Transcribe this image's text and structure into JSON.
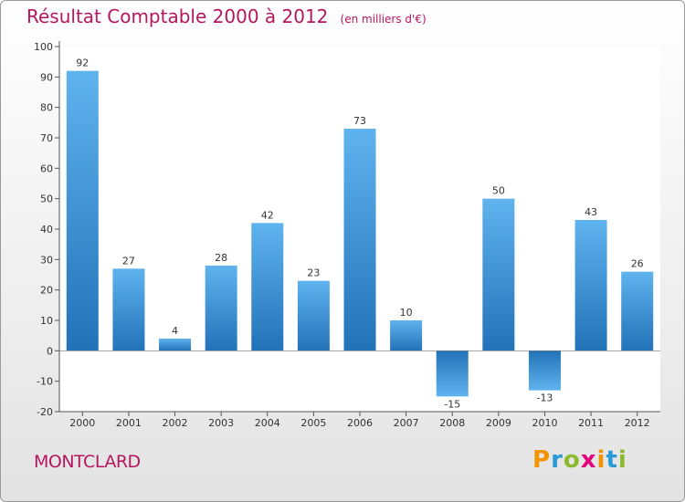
{
  "chart_data": {
    "type": "bar",
    "title": "Résultat Comptable 2000 à 2012",
    "subtitle": "(en milliers d'€)",
    "xlabel": "",
    "ylabel": "",
    "categories": [
      "2000",
      "2001",
      "2002",
      "2003",
      "2004",
      "2005",
      "2006",
      "2007",
      "2008",
      "2009",
      "2010",
      "2011",
      "2012"
    ],
    "values": [
      92,
      27,
      4,
      28,
      42,
      23,
      73,
      10,
      -15,
      50,
      -13,
      43,
      26
    ],
    "value_labels": [
      "92",
      "27",
      "4",
      "28",
      "42",
      "23",
      "73",
      "10",
      "-15",
      "50",
      "-13",
      "43",
      "26"
    ],
    "ylim": [
      -20,
      100
    ],
    "yticks": [
      100,
      90,
      80,
      70,
      60,
      50,
      40,
      30,
      20,
      10,
      0,
      -10,
      -20
    ],
    "ytick_labels": [
      "100",
      "90",
      "80",
      "70",
      "60",
      "50",
      "40",
      "30",
      "20",
      "10",
      "0",
      "-10",
      "-20"
    ],
    "grid": false,
    "legend": "none",
    "bar_color": "#3d94d6"
  },
  "location": "MONTCLARD",
  "logo": {
    "letters": [
      "P",
      "r",
      "o",
      "x",
      "i",
      "t",
      "i"
    ],
    "colors": [
      "#f29400",
      "#2a9ad6",
      "#8bbb2d",
      "#e4007c",
      "#f29400",
      "#2a9ad6",
      "#8bbb2d"
    ]
  }
}
